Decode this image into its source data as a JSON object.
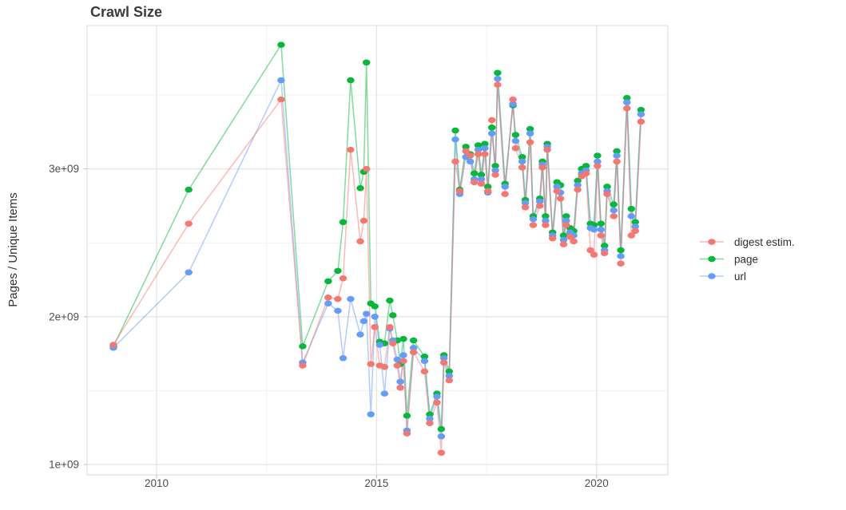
{
  "title": "Crawl Size",
  "y_axis": {
    "label": "Pages / Unique Items",
    "tick_labels": [
      "1e+09",
      "2e+09",
      "3e+09"
    ]
  },
  "x_axis": {
    "tick_labels": [
      "2010",
      "2015",
      "2020"
    ]
  },
  "legend": {
    "position": "right",
    "items": [
      "digest estim.",
      "page",
      "url"
    ]
  },
  "chart_data": {
    "type": "line",
    "title": "Crawl Size",
    "xlabel": "",
    "ylabel": "Pages / Unique Items",
    "grid": true,
    "legend_position": "right",
    "xlim": [
      2008.42,
      2021.62
    ],
    "ylim": [
      0.93,
      3.97
    ],
    "y_unit": "1e9",
    "x_breaks": {
      "values": [
        2010,
        2015,
        2020
      ],
      "labels": [
        "2010",
        "2015",
        "2020"
      ]
    },
    "y_breaks": {
      "values": [
        1,
        2,
        3
      ],
      "labels": [
        "1e+09",
        "2e+09",
        "3e+09"
      ]
    },
    "x_minor_breaks": [
      2012.5,
      2017.5
    ],
    "y_minor_breaks": [
      1.5,
      2.5,
      3.5
    ],
    "x": [
      2009.02,
      2010.73,
      2012.83,
      2013.32,
      2013.9,
      2014.12,
      2014.24,
      2014.41,
      2014.63,
      2014.71,
      2014.77,
      2014.87,
      2014.96,
      2015.07,
      2015.18,
      2015.3,
      2015.37,
      2015.47,
      2015.54,
      2015.61,
      2015.69,
      2015.84,
      2016.09,
      2016.21,
      2016.37,
      2016.47,
      2016.53,
      2016.65,
      2016.79,
      2016.89,
      2017.03,
      2017.13,
      2017.22,
      2017.31,
      2017.38,
      2017.46,
      2017.53,
      2017.62,
      2017.7,
      2017.75,
      2017.92,
      2018.1,
      2018.16,
      2018.31,
      2018.38,
      2018.49,
      2018.56,
      2018.71,
      2018.77,
      2018.84,
      2018.88,
      2019.0,
      2019.1,
      2019.18,
      2019.25,
      2019.31,
      2019.4,
      2019.48,
      2019.57,
      2019.66,
      2019.76,
      2019.86,
      2019.94,
      2020.02,
      2020.1,
      2020.18,
      2020.24,
      2020.39,
      2020.46,
      2020.55,
      2020.69,
      2020.79,
      2020.88,
      2021.01
    ],
    "series": [
      {
        "name": "digest estim.",
        "color": "#F8766D",
        "values": [
          1.81,
          2.63,
          3.47,
          1.67,
          2.13,
          2.12,
          2.26,
          3.13,
          2.51,
          2.65,
          3.0,
          1.68,
          1.93,
          1.67,
          1.66,
          1.93,
          1.82,
          1.67,
          1.52,
          1.7,
          1.21,
          1.76,
          1.63,
          1.28,
          1.42,
          1.08,
          1.69,
          1.57,
          3.05,
          2.85,
          3.12,
          3.09,
          2.91,
          3.1,
          2.9,
          3.1,
          2.85,
          3.33,
          2.96,
          3.57,
          2.83,
          3.47,
          3.14,
          3.01,
          2.74,
          3.18,
          2.62,
          2.75,
          3.01,
          2.62,
          3.13,
          2.53,
          2.85,
          2.8,
          2.49,
          2.62,
          2.54,
          2.51,
          2.86,
          2.95,
          2.97,
          2.45,
          2.42,
          3.02,
          2.55,
          2.43,
          2.83,
          2.68,
          3.05,
          2.36,
          3.41,
          2.55,
          2.58,
          3.32
        ]
      },
      {
        "name": "page",
        "color": "#00BA38",
        "values": [
          1.8,
          2.86,
          3.84,
          1.8,
          2.24,
          2.31,
          2.64,
          3.6,
          2.87,
          2.98,
          3.72,
          2.09,
          2.07,
          1.83,
          1.82,
          2.11,
          2.01,
          1.84,
          1.68,
          1.85,
          1.33,
          1.84,
          1.73,
          1.34,
          1.48,
          1.24,
          1.74,
          1.63,
          3.26,
          2.86,
          3.15,
          3.1,
          2.97,
          3.16,
          2.96,
          3.17,
          2.88,
          3.28,
          3.02,
          3.65,
          2.9,
          3.43,
          3.23,
          3.08,
          2.79,
          3.27,
          2.68,
          2.8,
          3.05,
          2.68,
          3.17,
          2.57,
          2.91,
          2.89,
          2.55,
          2.68,
          2.6,
          2.58,
          2.92,
          3.0,
          3.02,
          2.63,
          2.62,
          3.09,
          2.63,
          2.48,
          2.88,
          2.76,
          3.12,
          2.45,
          3.48,
          2.73,
          2.64,
          3.4
        ]
      },
      {
        "name": "url",
        "color": "#619CFF",
        "values": [
          1.79,
          2.3,
          3.6,
          1.69,
          2.09,
          2.04,
          1.72,
          2.12,
          1.88,
          1.97,
          2.02,
          1.34,
          2.0,
          1.81,
          1.48,
          1.92,
          1.84,
          1.71,
          1.56,
          1.74,
          1.23,
          1.79,
          1.7,
          1.31,
          1.46,
          1.19,
          1.72,
          1.6,
          3.2,
          2.83,
          3.08,
          3.05,
          2.93,
          3.13,
          2.93,
          3.14,
          2.84,
          3.24,
          2.99,
          3.61,
          2.88,
          3.44,
          3.19,
          3.05,
          2.77,
          3.24,
          2.66,
          2.78,
          3.03,
          2.65,
          3.15,
          2.55,
          2.88,
          2.84,
          2.52,
          2.65,
          2.57,
          2.55,
          2.89,
          2.97,
          2.99,
          2.6,
          2.59,
          3.05,
          2.59,
          2.45,
          2.85,
          2.72,
          3.09,
          2.41,
          3.45,
          2.68,
          2.61,
          3.37
        ]
      }
    ]
  }
}
